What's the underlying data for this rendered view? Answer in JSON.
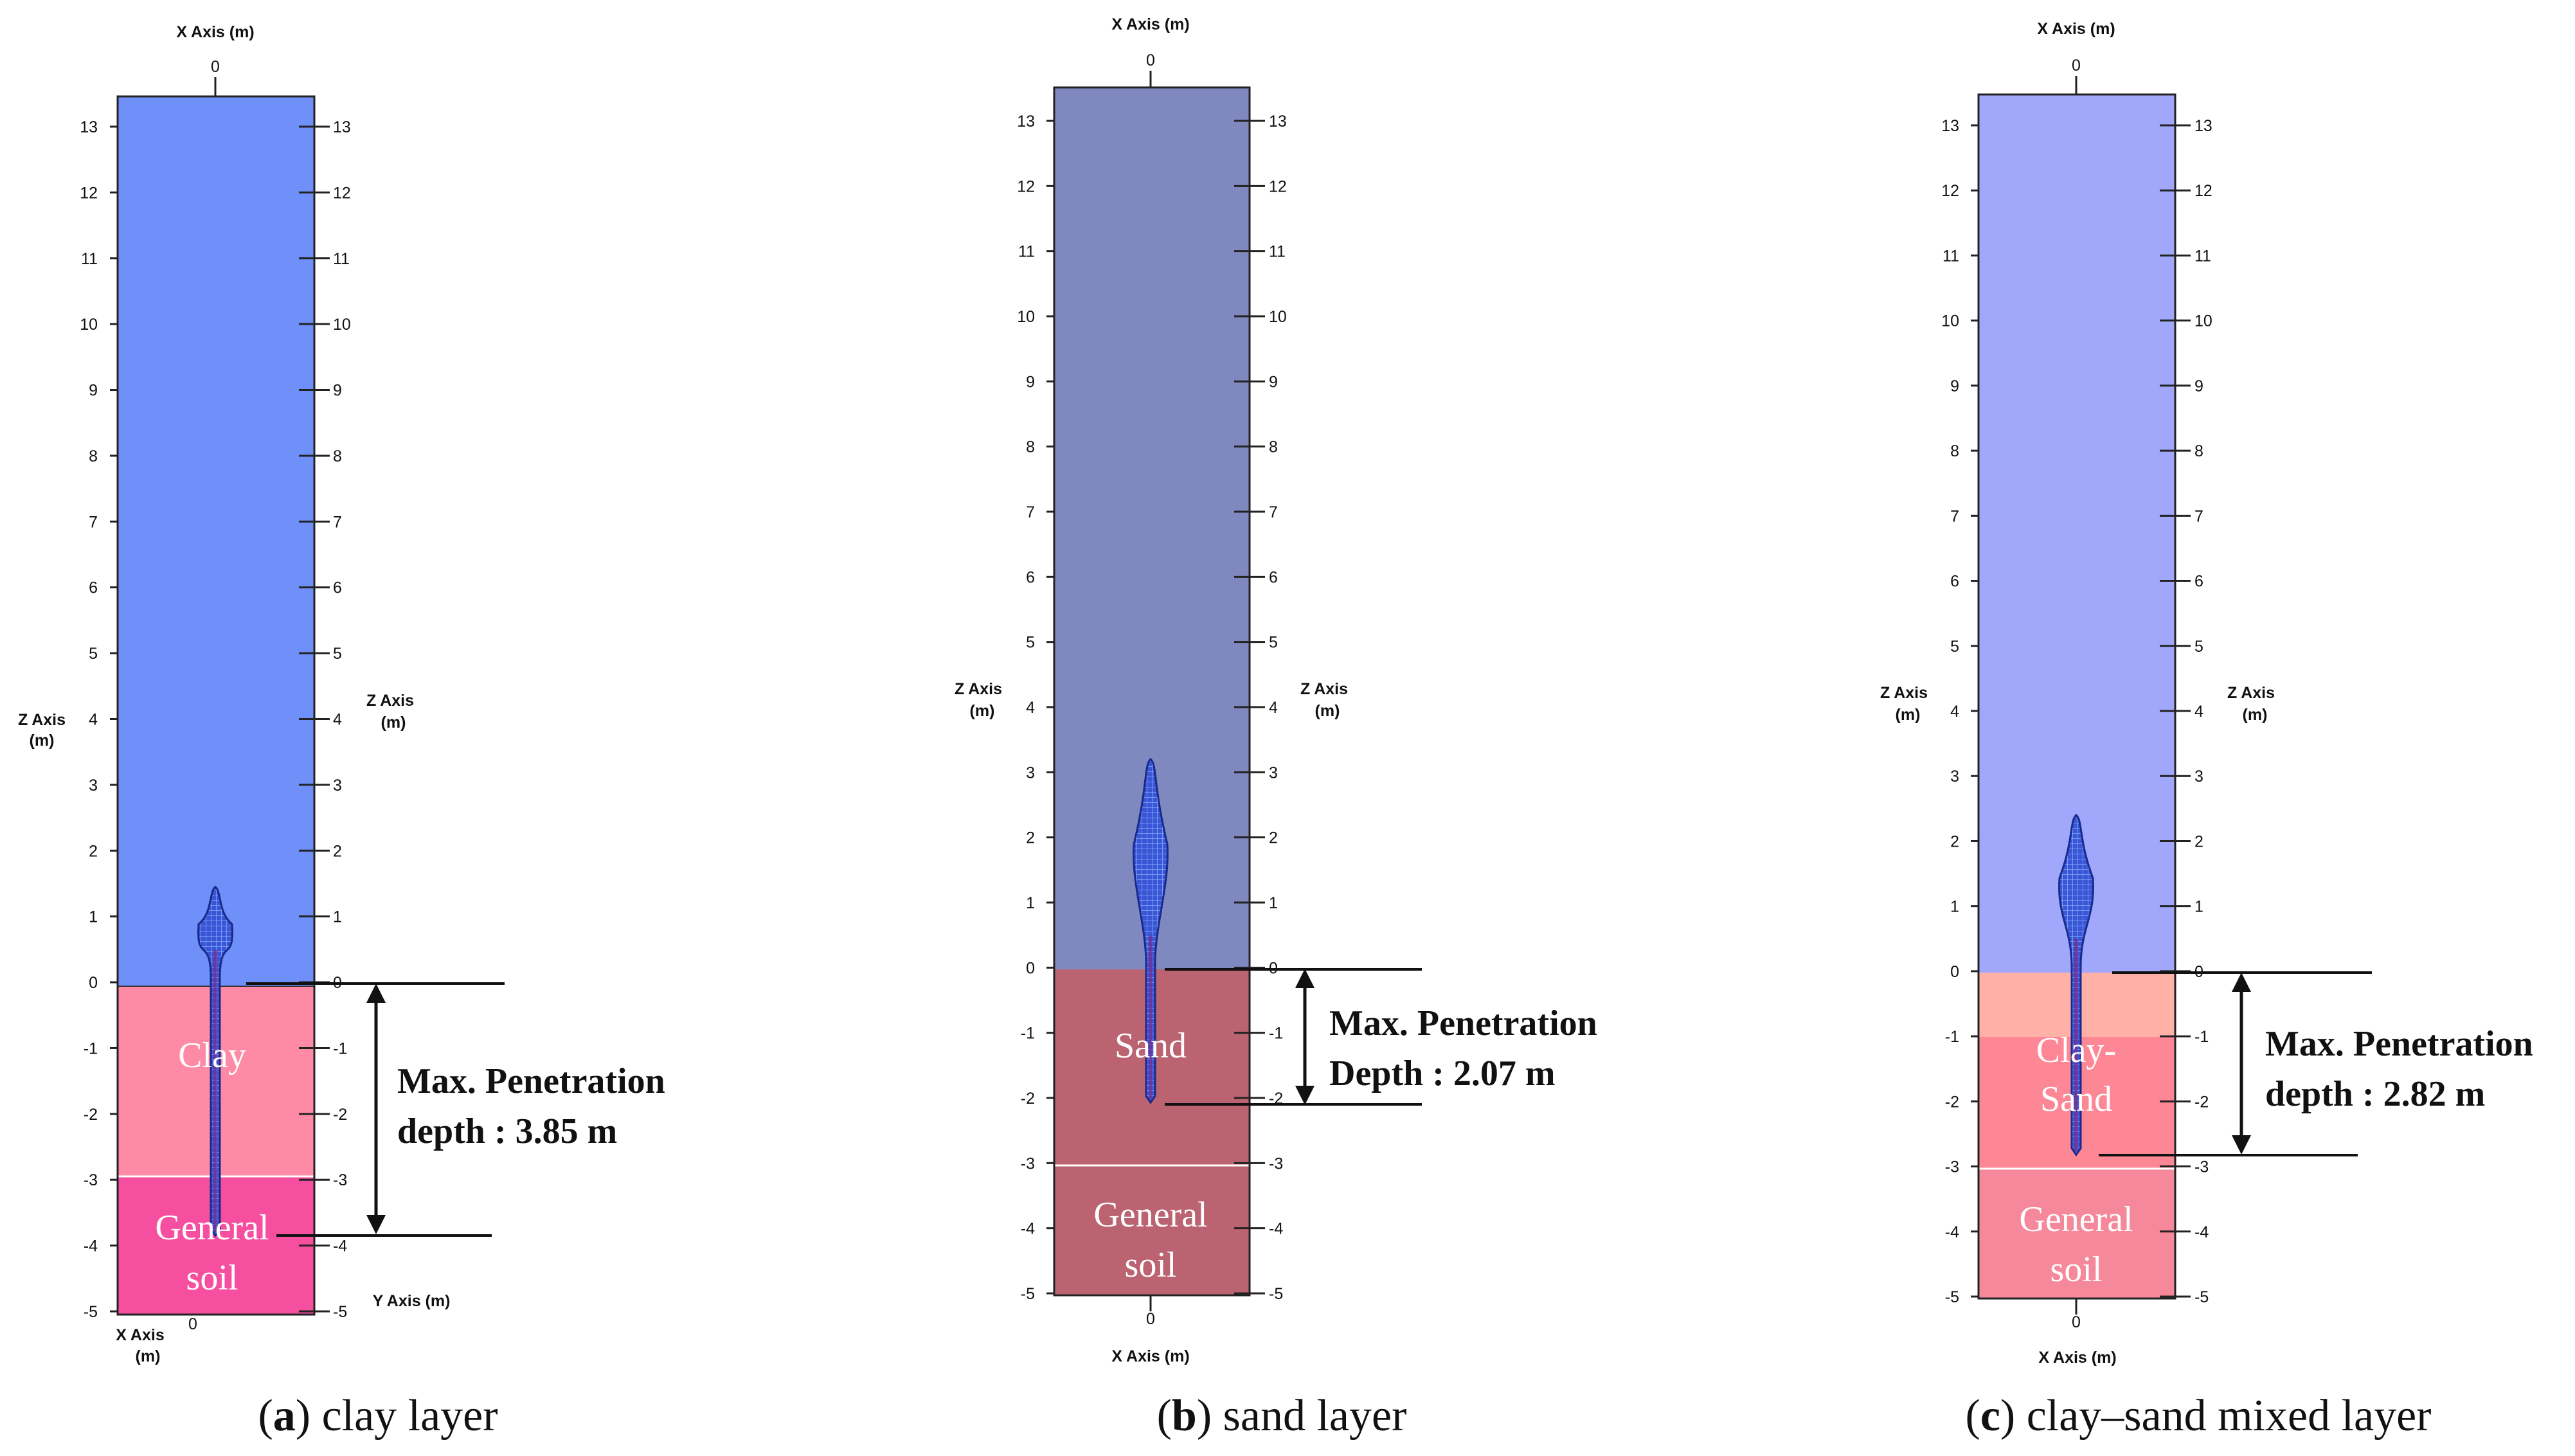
{
  "axis_unit": "(m)",
  "panels": [
    {
      "id": "a",
      "caption_letter": "a",
      "caption_text": "clay layer",
      "x_axis_top": "X Axis (m)",
      "x_axis_bottom_a": "X Axis",
      "x_axis_bottom_b": "(m)",
      "y_axis_right": "Y Axis (m)",
      "z_axis_left": "Z Axis",
      "z_axis_right": "Z Axis",
      "x_zero": "0",
      "layers": [
        {
          "name_lines": [
            "Clay"
          ],
          "from": 0,
          "to": -2.85,
          "color": "#ff8aa6"
        },
        {
          "name_lines": [
            "General",
            "soil"
          ],
          "from": -2.85,
          "to": -5,
          "color": "#f74fa0"
        }
      ],
      "water_color": "#6f8ff9",
      "left_ticks": [
        "13",
        "12",
        "11",
        "10",
        "9",
        "8",
        "7",
        "6",
        "5",
        "4",
        "3",
        "2",
        "1",
        "0",
        "-1",
        "-2",
        "-3",
        "-4",
        "-5"
      ],
      "right_ticks": [
        "13",
        "12",
        "11",
        "10",
        "9",
        "8",
        "7",
        "6",
        "5",
        "4",
        "3",
        "2",
        "1",
        "0",
        "-1",
        "-2",
        "-3",
        "-4",
        "-5"
      ],
      "penetration_label": "Max. Penetration",
      "penetration_value_label": "depth : 3.85 m",
      "penetration_depth_m": 3.85,
      "anchor_top_m": 1.45
    },
    {
      "id": "b",
      "caption_letter": "b",
      "caption_text": "sand layer",
      "x_axis_top": "X Axis (m)",
      "x_axis_bottom": "X Axis (m)",
      "z_axis_left": "Z Axis",
      "z_axis_right": "Z Axis",
      "x_zero_top": "0",
      "x_zero_bottom": "0",
      "layers": [
        {
          "name_lines": [
            "Sand"
          ],
          "from": 0,
          "to": -3,
          "color": "#bc6371"
        },
        {
          "name_lines": [
            "General",
            "soil"
          ],
          "from": -3,
          "to": -5,
          "color": "#bc6371"
        }
      ],
      "water_color": "#8088c0",
      "left_ticks": [
        "13",
        "12",
        "11",
        "10",
        "9",
        "8",
        "7",
        "6",
        "5",
        "4",
        "3",
        "2",
        "1",
        "0",
        "-1",
        "-2",
        "-3",
        "-4",
        "-5"
      ],
      "right_ticks": [
        "13",
        "12",
        "11",
        "10",
        "9",
        "8",
        "7",
        "6",
        "5",
        "4",
        "3",
        "2",
        "1",
        "0",
        "-1",
        "-2",
        "-3",
        "-4",
        "-5"
      ],
      "penetration_label": "Max. Penetration",
      "penetration_value_label": "Depth : 2.07 m",
      "penetration_depth_m": 2.07,
      "anchor_top_m": 3.2
    },
    {
      "id": "c",
      "caption_letter": "c",
      "caption_text": "clay–sand mixed layer",
      "x_axis_top": "X Axis (m)",
      "x_axis_bottom": "X Axis (m)",
      "z_axis_left": "Z Axis",
      "z_axis_right": "Z Axis",
      "x_zero_top": "0",
      "x_zero_bottom": "0",
      "layers": [
        {
          "name_lines": [
            "Clay-",
            "Sand"
          ],
          "from": 0,
          "to": -1,
          "color": "#ffb1a8"
        },
        {
          "name_lines": [],
          "from": -1,
          "to": -3,
          "color": "#fe8796"
        },
        {
          "name_lines": [
            "General",
            "soil"
          ],
          "from": -3,
          "to": -5,
          "color": "#f5889a"
        }
      ],
      "water_color": "#a1a8fb",
      "left_ticks": [
        "13",
        "12",
        "11",
        "10",
        "9",
        "8",
        "7",
        "6",
        "5",
        "4",
        "3",
        "2",
        "1",
        "0",
        "-1",
        "-2",
        "-3",
        "-4",
        "-5"
      ],
      "right_ticks": [
        "13",
        "12",
        "11",
        "10",
        "9",
        "8",
        "7",
        "6",
        "5",
        "4",
        "3",
        "2",
        "1",
        "0",
        "-1",
        "-2",
        "-3",
        "-4",
        "-5"
      ],
      "penetration_label": "Max. Penetration",
      "penetration_value_label": "depth : 2.82 m",
      "penetration_depth_m": 2.82,
      "anchor_top_m": 2.4
    }
  ],
  "colors": {
    "anchor_fill": "#3b55d6",
    "anchor_edge": "#1a2a8a",
    "line": "#111111"
  }
}
